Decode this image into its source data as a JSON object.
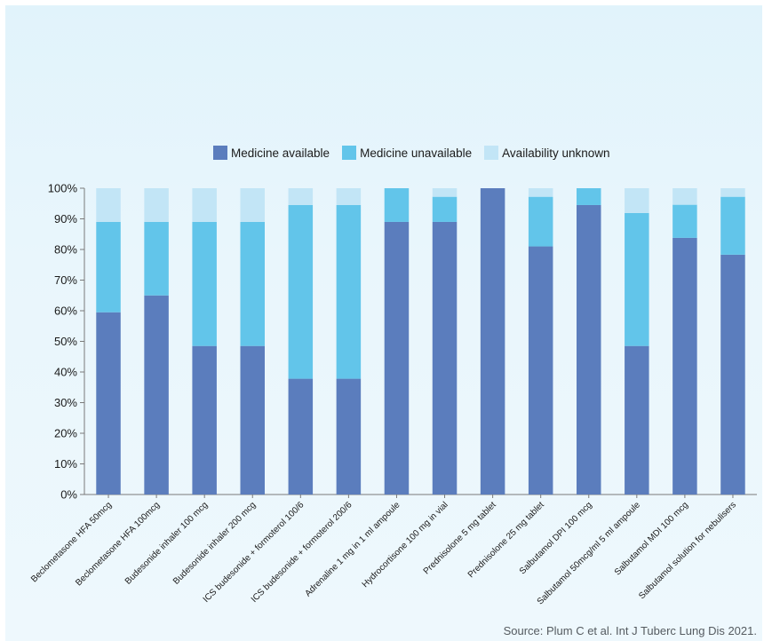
{
  "chart_data": {
    "type": "bar",
    "stacked": true,
    "categories": [
      "Beclometasone HFA 50mcg",
      "Beclometasone HFA 100mcg",
      "Budesonide inhaler 100 mcg",
      "Budesonide inhaler 200 mcg",
      "ICS budesonide + formoterol 100/6",
      "ICS budesonide + formoterol 200/6",
      "Adrenaline 1 mg in 1 ml ampoule",
      "Hydrocortisone 100 mg in vial",
      "Prednisolone 5 mg tablet",
      "Prednisolone 25 mg tablet",
      "Salbutamol DPI 100 mcg",
      "Salbutamol 50mcg/ml 5 ml ampoule",
      "Salbutamol MDI 100 mcg",
      "Salbutamol solution for nebulisers"
    ],
    "series": [
      {
        "name": "Medicine available",
        "color": "#5b7dbd",
        "values": [
          59.5,
          65,
          48.5,
          48.5,
          37.8,
          37.8,
          89,
          89,
          100,
          81,
          94.5,
          48.5,
          83.8,
          78.3
        ]
      },
      {
        "name": "Medicine unavailable",
        "color": "#62c5ea",
        "values": [
          29.5,
          24,
          40.5,
          40.5,
          56.7,
          56.7,
          11,
          8.2,
          0,
          16.2,
          5.5,
          43.4,
          10.8,
          18.9
        ]
      },
      {
        "name": "Availability unknown",
        "color": "#c2e5f6",
        "values": [
          11,
          11,
          11,
          11,
          5.5,
          5.5,
          0,
          2.8,
          0,
          2.8,
          0,
          8.1,
          5.4,
          2.8
        ]
      }
    ],
    "yticks": [
      "0%",
      "10%",
      "20%",
      "30%",
      "40%",
      "50%",
      "60%",
      "70%",
      "80%",
      "90%",
      "100%"
    ],
    "ylim": [
      0,
      100
    ],
    "legend_position": "top-center",
    "grid": false
  },
  "source": "Source: Plum C et al. Int J Tuberc Lung Dis 2021."
}
